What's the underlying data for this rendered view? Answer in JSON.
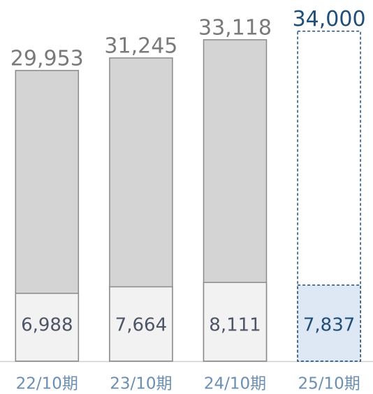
{
  "chart_data": {
    "type": "bar",
    "categories": [
      "22/10期",
      "23/10期",
      "24/10期",
      "25/10期"
    ],
    "series": [
      {
        "name": "total",
        "values": [
          29953,
          31245,
          33118,
          34000
        ],
        "value_labels": [
          "29,953",
          "31,245",
          "33,118",
          "34,000"
        ],
        "colors": [
          "#d4d4d4",
          "#d4d4d4",
          "#d4d4d4",
          "#ffffff"
        ],
        "label_colors": [
          "#7a7a7a",
          "#7a7a7a",
          "#7a7a7a",
          "#1f4e79"
        ]
      },
      {
        "name": "lower",
        "values": [
          6988,
          7664,
          8111,
          7837
        ],
        "value_labels": [
          "6,988",
          "7,664",
          "8,111",
          "7,837"
        ],
        "colors": [
          "#f2f2f2",
          "#f2f2f2",
          "#f2f2f2",
          "#dde8f4"
        ],
        "label_colors": [
          "#4d5566",
          "#4d5566",
          "#4d5566",
          "#1f4e79"
        ]
      }
    ],
    "dashed": [
      false,
      false,
      false,
      true
    ],
    "ylim": [
      0,
      37000
    ]
  }
}
